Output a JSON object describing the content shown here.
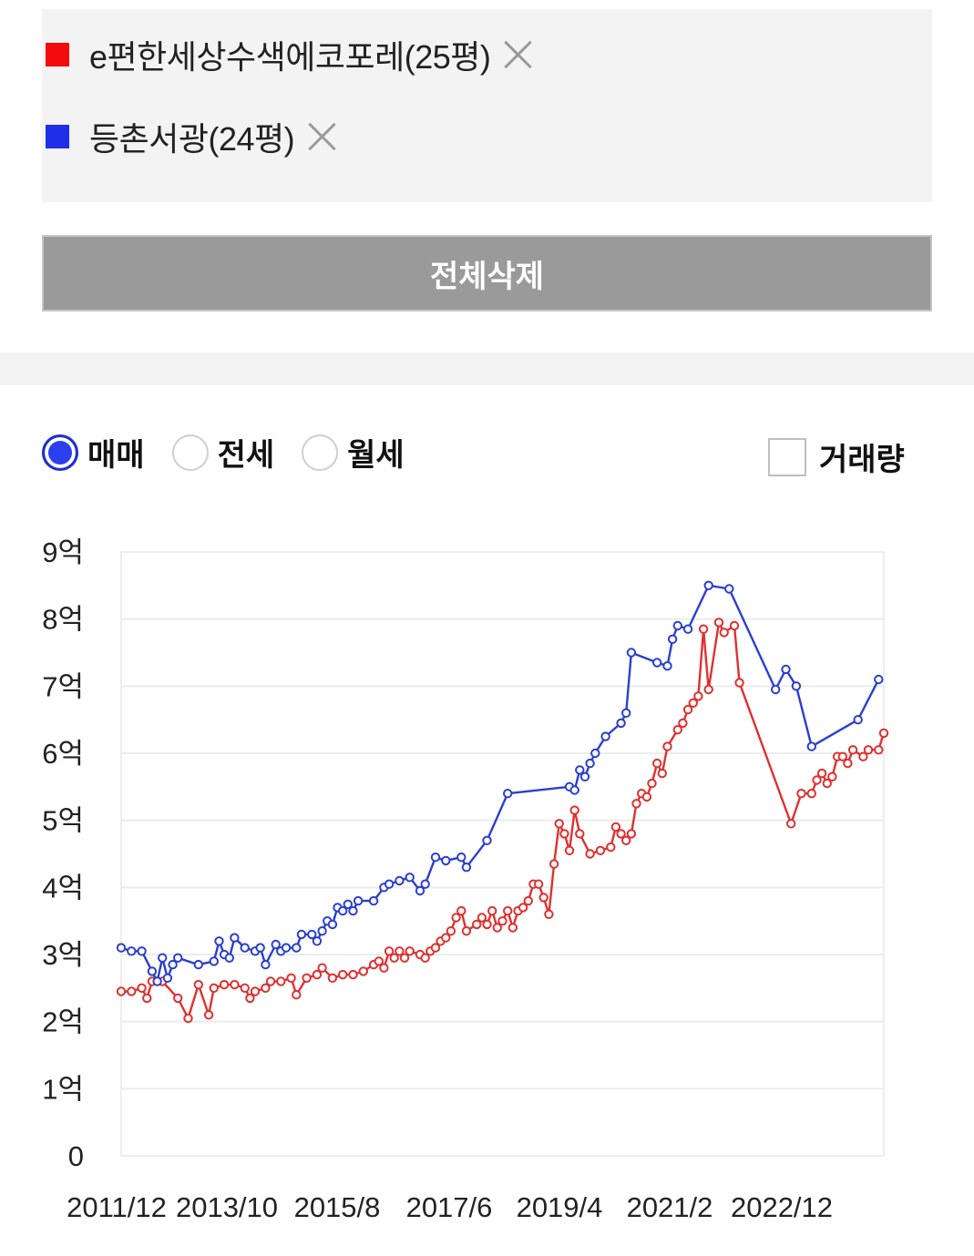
{
  "compare": {
    "items": [
      {
        "name": "e편한세상수색에코포레(25평)",
        "color": "#e81010"
      },
      {
        "name": "등촌서광(24평)",
        "color": "#1f2fe8"
      }
    ],
    "delete_all_label": "전체삭제"
  },
  "trade_types": [
    {
      "label": "매매",
      "selected": true
    },
    {
      "label": "전세",
      "selected": false
    },
    {
      "label": "월세",
      "selected": false
    }
  ],
  "volume_toggle": {
    "label": "거래량",
    "checked": false
  },
  "chart_data": {
    "type": "line",
    "ylim": [
      0,
      9
    ],
    "y_ticks": [
      "0",
      "1억",
      "2억",
      "3억",
      "4억",
      "5억",
      "6억",
      "7억",
      "8억",
      "9억"
    ],
    "x_ticks": [
      "2011/12",
      "2013/10",
      "2015/8",
      "2017/6",
      "2019/4",
      "2021/2",
      "2022/12"
    ],
    "grid": true,
    "series": [
      {
        "name": "e편한세상수색에코포레(25평)",
        "color": "#e03030",
        "points": [
          [
            "2011/12",
            2.45
          ],
          [
            "2012/2",
            2.45
          ],
          [
            "2012/4",
            2.5
          ],
          [
            "2012/5",
            2.35
          ],
          [
            "2012/6",
            2.6
          ],
          [
            "2012/8",
            2.6
          ],
          [
            "2012/11",
            2.35
          ],
          [
            "2013/1",
            2.05
          ],
          [
            "2013/3",
            2.55
          ],
          [
            "2013/5",
            2.1
          ],
          [
            "2013/6",
            2.5
          ],
          [
            "2013/8",
            2.55
          ],
          [
            "2013/10",
            2.55
          ],
          [
            "2013/12",
            2.5
          ],
          [
            "2014/1",
            2.35
          ],
          [
            "2014/2",
            2.45
          ],
          [
            "2014/4",
            2.5
          ],
          [
            "2014/5",
            2.6
          ],
          [
            "2014/7",
            2.6
          ],
          [
            "2014/9",
            2.65
          ],
          [
            "2014/10",
            2.4
          ],
          [
            "2014/12",
            2.65
          ],
          [
            "2015/2",
            2.7
          ],
          [
            "2015/3",
            2.8
          ],
          [
            "2015/5",
            2.65
          ],
          [
            "2015/7",
            2.7
          ],
          [
            "2015/9",
            2.7
          ],
          [
            "2015/11",
            2.75
          ],
          [
            "2016/1",
            2.85
          ],
          [
            "2016/2",
            2.9
          ],
          [
            "2016/3",
            2.8
          ],
          [
            "2016/4",
            3.05
          ],
          [
            "2016/5",
            2.95
          ],
          [
            "2016/6",
            3.05
          ],
          [
            "2016/7",
            2.95
          ],
          [
            "2016/8",
            3.05
          ],
          [
            "2016/10",
            3.0
          ],
          [
            "2016/11",
            2.95
          ],
          [
            "2016/12",
            3.05
          ],
          [
            "2017/1",
            3.1
          ],
          [
            "2017/2",
            3.2
          ],
          [
            "2017/3",
            3.25
          ],
          [
            "2017/4",
            3.35
          ],
          [
            "2017/5",
            3.55
          ],
          [
            "2017/6",
            3.65
          ],
          [
            "2017/7",
            3.35
          ],
          [
            "2017/9",
            3.45
          ],
          [
            "2017/10",
            3.55
          ],
          [
            "2017/11",
            3.45
          ],
          [
            "2017/12",
            3.65
          ],
          [
            "2018/1",
            3.4
          ],
          [
            "2018/2",
            3.5
          ],
          [
            "2018/3",
            3.65
          ],
          [
            "2018/4",
            3.4
          ],
          [
            "2018/5",
            3.65
          ],
          [
            "2018/6",
            3.7
          ],
          [
            "2018/7",
            3.8
          ],
          [
            "2018/8",
            4.05
          ],
          [
            "2018/9",
            4.05
          ],
          [
            "2018/10",
            3.85
          ],
          [
            "2018/11",
            3.6
          ],
          [
            "2018/12",
            4.35
          ],
          [
            "2019/1",
            4.95
          ],
          [
            "2019/2",
            4.8
          ],
          [
            "2019/3",
            4.55
          ],
          [
            "2019/4",
            5.15
          ],
          [
            "2019/5",
            4.8
          ],
          [
            "2019/7",
            4.5
          ],
          [
            "2019/9",
            4.55
          ],
          [
            "2019/11",
            4.6
          ],
          [
            "2019/12",
            4.9
          ],
          [
            "2020/1",
            4.8
          ],
          [
            "2020/2",
            4.7
          ],
          [
            "2020/3",
            4.8
          ],
          [
            "2020/4",
            5.25
          ],
          [
            "2020/5",
            5.4
          ],
          [
            "2020/6",
            5.35
          ],
          [
            "2020/7",
            5.55
          ],
          [
            "2020/8",
            5.85
          ],
          [
            "2020/9",
            5.7
          ],
          [
            "2020/10",
            6.1
          ],
          [
            "2020/12",
            6.35
          ],
          [
            "2021/1",
            6.45
          ],
          [
            "2021/2",
            6.65
          ],
          [
            "2021/3",
            6.75
          ],
          [
            "2021/4",
            6.85
          ],
          [
            "2021/5",
            7.85
          ],
          [
            "2021/6",
            6.95
          ],
          [
            "2021/8",
            7.95
          ],
          [
            "2021/9",
            7.8
          ],
          [
            "2021/11",
            7.9
          ],
          [
            "2021/12",
            7.05
          ],
          [
            "2022/10",
            4.95
          ],
          [
            "2022/12",
            5.4
          ],
          [
            "2023/2",
            5.4
          ],
          [
            "2023/3",
            5.6
          ],
          [
            "2023/4",
            5.7
          ],
          [
            "2023/5",
            5.55
          ],
          [
            "2023/6",
            5.65
          ],
          [
            "2023/7",
            5.95
          ],
          [
            "2023/8",
            5.95
          ],
          [
            "2023/9",
            5.85
          ],
          [
            "2023/10",
            6.05
          ],
          [
            "2023/12",
            5.95
          ],
          [
            "2024/1",
            6.05
          ],
          [
            "2024/3",
            6.05
          ],
          [
            "2024/4",
            6.3
          ]
        ]
      },
      {
        "name": "등촌서광(24평)",
        "color": "#2a3fcf",
        "points": [
          [
            "2011/12",
            3.1
          ],
          [
            "2012/2",
            3.05
          ],
          [
            "2012/4",
            3.05
          ],
          [
            "2012/6",
            2.75
          ],
          [
            "2012/7",
            2.6
          ],
          [
            "2012/8",
            2.95
          ],
          [
            "2012/9",
            2.65
          ],
          [
            "2012/10",
            2.85
          ],
          [
            "2012/11",
            2.95
          ],
          [
            "2013/3",
            2.85
          ],
          [
            "2013/6",
            2.9
          ],
          [
            "2013/7",
            3.2
          ],
          [
            "2013/8",
            3.0
          ],
          [
            "2013/9",
            2.95
          ],
          [
            "2013/10",
            3.25
          ],
          [
            "2013/12",
            3.1
          ],
          [
            "2014/2",
            3.05
          ],
          [
            "2014/3",
            3.1
          ],
          [
            "2014/4",
            2.85
          ],
          [
            "2014/6",
            3.15
          ],
          [
            "2014/7",
            3.05
          ],
          [
            "2014/8",
            3.1
          ],
          [
            "2014/10",
            3.1
          ],
          [
            "2014/11",
            3.3
          ],
          [
            "2015/1",
            3.3
          ],
          [
            "2015/2",
            3.2
          ],
          [
            "2015/3",
            3.35
          ],
          [
            "2015/4",
            3.5
          ],
          [
            "2015/5",
            3.45
          ],
          [
            "2015/6",
            3.7
          ],
          [
            "2015/7",
            3.65
          ],
          [
            "2015/8",
            3.75
          ],
          [
            "2015/9",
            3.65
          ],
          [
            "2015/10",
            3.8
          ],
          [
            "2016/1",
            3.8
          ],
          [
            "2016/3",
            4.0
          ],
          [
            "2016/4",
            4.05
          ],
          [
            "2016/6",
            4.1
          ],
          [
            "2016/8",
            4.15
          ],
          [
            "2016/10",
            3.95
          ],
          [
            "2016/11",
            4.05
          ],
          [
            "2017/1",
            4.45
          ],
          [
            "2017/3",
            4.4
          ],
          [
            "2017/6",
            4.45
          ],
          [
            "2017/7",
            4.3
          ],
          [
            "2017/11",
            4.7
          ],
          [
            "2018/3",
            5.4
          ],
          [
            "2019/3",
            5.5
          ],
          [
            "2019/4",
            5.45
          ],
          [
            "2019/5",
            5.75
          ],
          [
            "2019/6",
            5.65
          ],
          [
            "2019/7",
            5.85
          ],
          [
            "2019/8",
            6.0
          ],
          [
            "2019/10",
            6.25
          ],
          [
            "2020/1",
            6.45
          ],
          [
            "2020/2",
            6.6
          ],
          [
            "2020/3",
            7.5
          ],
          [
            "2020/8",
            7.35
          ],
          [
            "2020/10",
            7.3
          ],
          [
            "2020/11",
            7.7
          ],
          [
            "2020/12",
            7.9
          ],
          [
            "2021/2",
            7.85
          ],
          [
            "2021/6",
            8.5
          ],
          [
            "2021/10",
            8.45
          ],
          [
            "2022/7",
            6.95
          ],
          [
            "2022/9",
            7.25
          ],
          [
            "2022/11",
            7.0
          ],
          [
            "2023/2",
            6.1
          ],
          [
            "2023/11",
            6.5
          ],
          [
            "2024/3",
            7.1
          ]
        ]
      }
    ]
  }
}
